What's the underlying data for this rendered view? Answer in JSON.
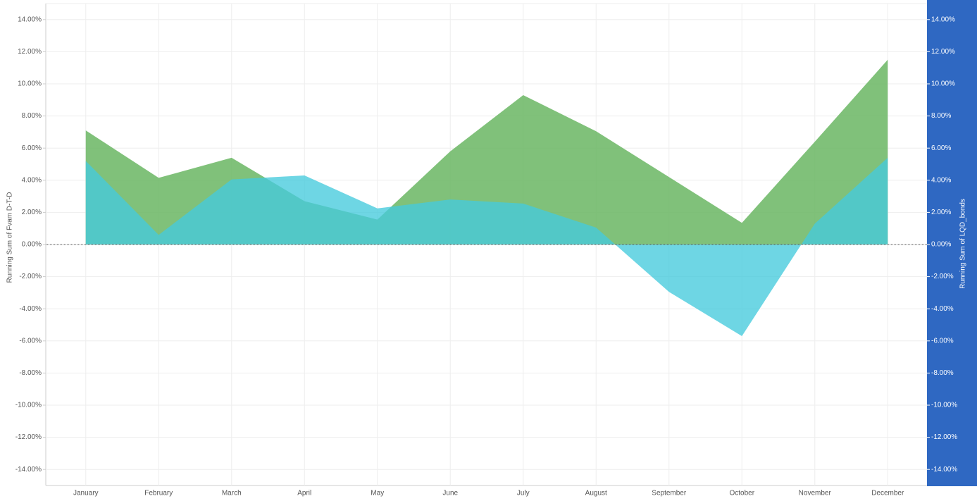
{
  "chart_data": {
    "type": "area",
    "categories": [
      "January",
      "February",
      "March",
      "April",
      "May",
      "June",
      "July",
      "August",
      "September",
      "October",
      "November",
      "December"
    ],
    "y_label": "Running Sum of Fvam D-T-D",
    "y2_label": "Running Sum of LQD_bonds",
    "series": [
      {
        "name": "Running Sum of Fvam D-T-D",
        "color": "#6ab663",
        "values": [
          7.1,
          4.15,
          5.4,
          2.7,
          1.55,
          5.8,
          9.3,
          7.05,
          4.2,
          1.35,
          6.4,
          11.5
        ]
      },
      {
        "name": "Running Sum of LQD_bonds",
        "color": "#45cbdc",
        "axis": "y2",
        "values": [
          5.2,
          0.6,
          4.05,
          4.3,
          2.25,
          2.8,
          2.55,
          1.05,
          -2.95,
          -5.7,
          1.3,
          5.4
        ]
      }
    ],
    "ylim": [
      -15,
      15
    ],
    "yticks": [
      {
        "value": 14,
        "label": "14.00%"
      },
      {
        "value": 12,
        "label": "12.00%"
      },
      {
        "value": 10,
        "label": "10.00%"
      },
      {
        "value": 8,
        "label": "8.00%"
      },
      {
        "value": 6,
        "label": "6.00%"
      },
      {
        "value": 4,
        "label": "4.00%"
      },
      {
        "value": 2,
        "label": "2.00%"
      },
      {
        "value": 0,
        "label": "0.00%"
      },
      {
        "value": -2,
        "label": "-2.00%"
      },
      {
        "value": -4,
        "label": "-4.00%"
      },
      {
        "value": -6,
        "label": "-6.00%"
      },
      {
        "value": -8,
        "label": "-8.00%"
      },
      {
        "value": -10,
        "label": "-10.00%"
      },
      {
        "value": -12,
        "label": "-12.00%"
      },
      {
        "value": -14,
        "label": "-14.00%"
      }
    ],
    "y2lim": [
      -15,
      15
    ],
    "y2ticks": [
      {
        "value": 14,
        "label": "14.00%"
      },
      {
        "value": 12,
        "label": "12.00%"
      },
      {
        "value": 10,
        "label": "10.00%"
      },
      {
        "value": 8,
        "label": "8.00%"
      },
      {
        "value": 6,
        "label": "6.00%"
      },
      {
        "value": 4,
        "label": "4.00%"
      },
      {
        "value": 2,
        "label": "2.00%"
      },
      {
        "value": 0,
        "label": "0.00%"
      },
      {
        "value": -2,
        "label": "-2.00%"
      },
      {
        "value": -4,
        "label": "-4.00%"
      },
      {
        "value": -6,
        "label": "-6.00%"
      },
      {
        "value": -8,
        "label": "-8.00%"
      },
      {
        "value": -10,
        "label": "-10.00%"
      },
      {
        "value": -12,
        "label": "-12.00%"
      },
      {
        "value": -14,
        "label": "-14.00%"
      }
    ],
    "grid": true
  }
}
